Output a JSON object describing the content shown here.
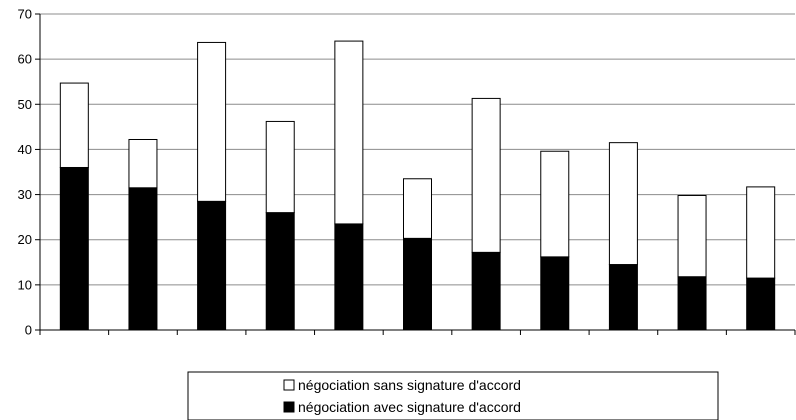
{
  "chart_data": {
    "type": "bar",
    "stacked": true,
    "categories": [
      "",
      "",
      "",
      "",
      "",
      "",
      "",
      "",
      "",
      "",
      ""
    ],
    "series": [
      {
        "name": "négociation avec signature d'accord",
        "color": "#000000",
        "values": [
          36,
          31.5,
          28.5,
          26,
          23.5,
          20.3,
          17.2,
          16.2,
          14.5,
          11.8,
          11.5
        ]
      },
      {
        "name": "négociation sans signature d'accord",
        "color": "#ffffff",
        "values": [
          18.7,
          10.7,
          35.2,
          20.2,
          40.5,
          13.2,
          34.1,
          23.4,
          27,
          18,
          20.2
        ]
      }
    ],
    "ylim": [
      0,
      70
    ],
    "yticks": [
      "0",
      "10",
      "20",
      "30",
      "40",
      "50",
      "60",
      "70"
    ],
    "grid": true,
    "legend_position": "bottom",
    "legend_order": [
      "négociation sans signature d'accord",
      "négociation avec signature d'accord"
    ],
    "title": "",
    "xlabel": "",
    "ylabel": ""
  }
}
